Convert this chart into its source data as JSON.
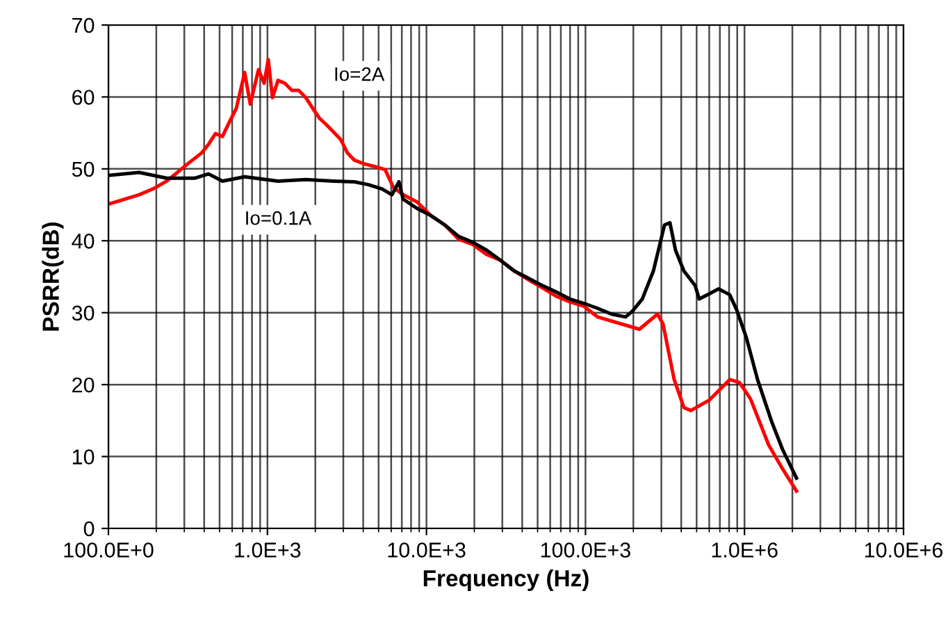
{
  "chart_data": {
    "type": "line",
    "xlabel": "Frequency (Hz)",
    "ylabel": "PSRR(dB)",
    "log": "x",
    "grid": true,
    "marker": "none",
    "line_style": "solid",
    "xlim": [
      100,
      10000000
    ],
    "xticks": [
      {
        "value": 100,
        "label": "100.0E+0"
      },
      {
        "value": 1000,
        "label": "1.0E+3"
      },
      {
        "value": 10000,
        "label": "10.0E+3"
      },
      {
        "value": 100000,
        "label": "100.0E+3"
      },
      {
        "value": 1000000,
        "label": "1.0E+6"
      },
      {
        "value": 10000000,
        "label": "10.0E+6"
      }
    ],
    "ylim": [
      0,
      70
    ],
    "yticks": [
      0,
      10,
      20,
      30,
      40,
      50,
      60,
      70
    ],
    "series": [
      {
        "name": "Io=2A",
        "color": "#ff0000",
        "x": [
          100,
          127,
          156,
          190,
          233,
          285,
          315,
          385,
          426,
          471,
          521,
          576,
          637,
          719,
          780,
          879,
          953,
          1012,
          1075,
          1165,
          1288,
          1425,
          1576,
          1742,
          1928,
          2132,
          2357,
          2607,
          2884,
          3187,
          3524,
          4055,
          4764,
          5495,
          6195,
          7129,
          8730,
          10670,
          13030,
          15960,
          19500,
          23880,
          29170,
          35650,
          43650,
          53330,
          65310,
          79800,
          97700,
          119400,
          218300,
          283800,
          307600,
          361300,
          415900,
          460200,
          597000,
          807000,
          930000,
          1092000,
          1419000,
          1734000,
          2123000
        ],
        "values": [
          45.1,
          45.8,
          46.4,
          47.2,
          48.3,
          49.9,
          50.7,
          52.2,
          53.4,
          54.9,
          54.5,
          56.5,
          58.4,
          63.4,
          59.0,
          63.8,
          61.9,
          65.2,
          59.9,
          62.3,
          61.9,
          60.9,
          60.9,
          59.9,
          58.4,
          57.0,
          56.1,
          55.1,
          54.1,
          52.2,
          51.2,
          50.7,
          50.3,
          49.9,
          47.4,
          46.4,
          45.4,
          43.5,
          42.2,
          40.2,
          39.5,
          38.1,
          37.3,
          35.8,
          34.6,
          33.5,
          32.3,
          31.5,
          30.9,
          29.4,
          27.7,
          29.8,
          28.4,
          20.7,
          16.8,
          16.4,
          17.8,
          20.7,
          20.3,
          18.0,
          11.6,
          8.3,
          5.2
        ]
      },
      {
        "name": "Io=0.1A",
        "color": "#000000",
        "x": [
          100,
          156,
          233,
          348,
          426,
          521,
          719,
          1165,
          1742,
          2607,
          3524,
          4315,
          5272,
          6067,
          6714,
          7129,
          8730,
          10670,
          13030,
          15960,
          19500,
          23880,
          29170,
          35650,
          43650,
          53330,
          65310,
          79800,
          97700,
          119400,
          145900,
          178600,
          197200,
          227500,
          267300,
          314100,
          339800,
          368300,
          415900,
          488700,
          518800,
          687100,
          807000,
          893000,
          1028000,
          1208000,
          1479000,
          1734000,
          2123000
        ],
        "values": [
          49.1,
          49.5,
          48.7,
          48.7,
          49.3,
          48.3,
          48.9,
          48.3,
          48.5,
          48.3,
          48.2,
          47.8,
          47.2,
          46.4,
          48.2,
          45.8,
          44.5,
          43.5,
          42.2,
          40.6,
          39.8,
          38.7,
          37.3,
          35.8,
          34.8,
          33.8,
          32.9,
          31.9,
          31.3,
          30.6,
          29.8,
          29.4,
          30.2,
          31.9,
          35.8,
          42.2,
          42.5,
          38.7,
          35.8,
          33.8,
          31.9,
          33.3,
          32.5,
          30.4,
          26.5,
          20.7,
          14.9,
          11.0,
          7.0
        ]
      }
    ]
  }
}
